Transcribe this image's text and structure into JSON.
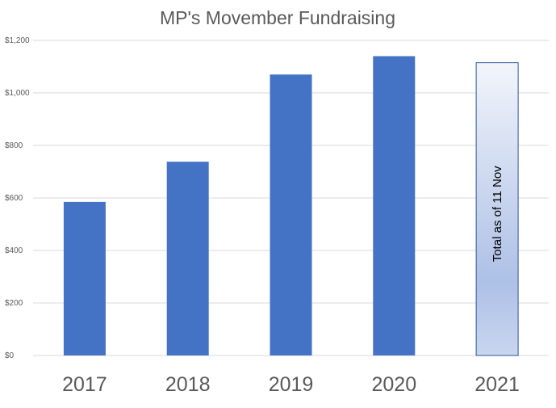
{
  "chart_data": {
    "type": "bar",
    "title": "MP's Movember Fundraising",
    "xlabel": "",
    "ylabel": "",
    "categories": [
      "2017",
      "2018",
      "2019",
      "2020",
      "2021"
    ],
    "values": [
      585,
      738,
      1070,
      1140,
      1115
    ],
    "ylim": [
      0,
      1200
    ],
    "yticks": [
      0,
      200,
      400,
      600,
      800,
      1000,
      1200
    ],
    "ytick_labels": [
      "$0",
      "$200",
      "$400",
      "$600",
      "$800",
      "$1,000",
      "$1,200"
    ],
    "grid": true,
    "legend": "none",
    "annotations": [
      {
        "category": "2021",
        "text": "Total as of 11 Nov"
      }
    ],
    "colors": {
      "bar": "#4472c4",
      "highlight_bar_top": "#f2f5fb",
      "highlight_bar_bottom": "#adc0e6",
      "highlight_bar_border": "#2f5597",
      "gridline": "#d9d9d9",
      "text": "#595959"
    }
  }
}
